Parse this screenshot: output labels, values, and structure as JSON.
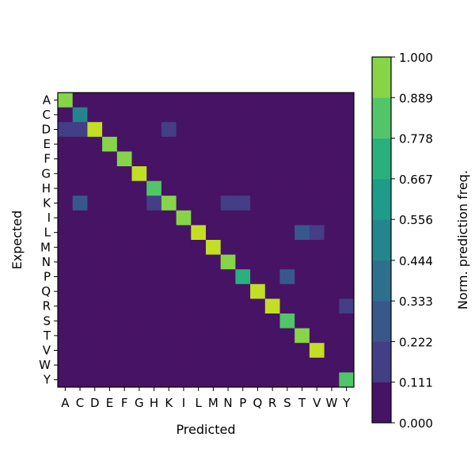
{
  "chart_data": {
    "type": "heatmap",
    "title": "",
    "xlabel": "Predicted",
    "ylabel": "Expected",
    "x_categories": [
      "A",
      "C",
      "D",
      "E",
      "F",
      "G",
      "H",
      "K",
      "I",
      "L",
      "M",
      "N",
      "P",
      "Q",
      "R",
      "S",
      "T",
      "V",
      "W",
      "Y"
    ],
    "y_categories": [
      "A",
      "C",
      "D",
      "E",
      "F",
      "G",
      "H",
      "K",
      "I",
      "L",
      "M",
      "N",
      "P",
      "Q",
      "R",
      "S",
      "T",
      "V",
      "W",
      "Y"
    ],
    "colorbar": {
      "label": "Norm. prediction freq.",
      "ticks": [
        "0.000",
        "0.111",
        "0.222",
        "0.333",
        "0.444",
        "0.556",
        "0.667",
        "0.778",
        "0.889",
        "1.000"
      ],
      "range": [
        0,
        1
      ],
      "levels": 9,
      "colors": [
        "#471365",
        "#433e85",
        "#38588c",
        "#2d708e",
        "#25858e",
        "#1e9b8a",
        "#2ab07f",
        "#52c569",
        "#86d549",
        "#c2df23"
      ]
    },
    "matrix": [
      [
        0.89,
        0.02,
        0.02,
        0.02,
        0.02,
        0.02,
        0.02,
        0.02,
        0.05,
        0.02,
        0.02,
        0.02,
        0.06,
        0.02,
        0.02,
        0.02,
        0.02,
        0.02,
        0.02,
        0.04
      ],
      [
        0.02,
        0.5,
        0.02,
        0.02,
        0.02,
        0.02,
        0.02,
        0.02,
        0.02,
        0.02,
        0.02,
        0.02,
        0.02,
        0.02,
        0.02,
        0.02,
        0.02,
        0.02,
        0.02,
        0.02
      ],
      [
        0.13,
        0.13,
        1.0,
        0.02,
        0.02,
        0.02,
        0.02,
        0.15,
        0.04,
        0.02,
        0.02,
        0.02,
        0.02,
        0.02,
        0.02,
        0.02,
        0.02,
        0.02,
        0.02,
        0.08
      ],
      [
        0.02,
        0.02,
        0.02,
        0.95,
        0.02,
        0.02,
        0.02,
        0.02,
        0.02,
        0.02,
        0.02,
        0.02,
        0.02,
        0.02,
        0.02,
        0.02,
        0.02,
        0.02,
        0.02,
        0.04
      ],
      [
        0.02,
        0.02,
        0.02,
        0.02,
        0.89,
        0.02,
        0.02,
        0.02,
        0.02,
        0.02,
        0.02,
        0.02,
        0.02,
        0.02,
        0.02,
        0.02,
        0.02,
        0.02,
        0.02,
        0.02
      ],
      [
        0.02,
        0.02,
        0.02,
        0.02,
        0.02,
        1.0,
        0.02,
        0.02,
        0.02,
        0.02,
        0.02,
        0.02,
        0.02,
        0.02,
        0.02,
        0.02,
        0.02,
        0.02,
        0.02,
        0.02
      ],
      [
        0.02,
        0.02,
        0.02,
        0.02,
        0.02,
        0.02,
        0.82,
        0.02,
        0.02,
        0.02,
        0.02,
        0.02,
        0.02,
        0.02,
        0.02,
        0.02,
        0.02,
        0.02,
        0.02,
        0.02
      ],
      [
        0.02,
        0.29,
        0.02,
        0.03,
        0.05,
        0.02,
        0.2,
        0.89,
        0.02,
        0.02,
        0.02,
        0.13,
        0.15,
        0.02,
        0.02,
        0.02,
        0.02,
        0.02,
        0.02,
        0.02
      ],
      [
        0.02,
        0.02,
        0.02,
        0.02,
        0.02,
        0.02,
        0.02,
        0.02,
        0.89,
        0.02,
        0.02,
        0.02,
        0.02,
        0.02,
        0.02,
        0.02,
        0.02,
        0.02,
        0.02,
        0.02
      ],
      [
        0.05,
        0.07,
        0.07,
        0.03,
        0.07,
        0.02,
        0.04,
        0.09,
        0.09,
        1.0,
        0.02,
        0.02,
        0.07,
        0.02,
        0.02,
        0.02,
        0.25,
        0.12,
        0.02,
        0.06
      ],
      [
        0.02,
        0.02,
        0.02,
        0.02,
        0.02,
        0.02,
        0.02,
        0.02,
        0.02,
        0.02,
        1.0,
        0.02,
        0.02,
        0.02,
        0.02,
        0.02,
        0.02,
        0.02,
        0.02,
        0.02
      ],
      [
        0.02,
        0.08,
        0.02,
        0.02,
        0.02,
        0.02,
        0.02,
        0.02,
        0.02,
        0.02,
        0.02,
        0.89,
        0.02,
        0.02,
        0.02,
        0.02,
        0.02,
        0.02,
        0.02,
        0.02
      ],
      [
        0.02,
        0.02,
        0.02,
        0.02,
        0.02,
        0.02,
        0.02,
        0.02,
        0.02,
        0.02,
        0.02,
        0.02,
        0.67,
        0.02,
        0.02,
        0.25,
        0.02,
        0.02,
        0.02,
        0.02
      ],
      [
        0.02,
        0.02,
        0.02,
        0.02,
        0.09,
        0.02,
        0.02,
        0.02,
        0.02,
        0.02,
        0.02,
        0.02,
        0.02,
        1.0,
        0.02,
        0.02,
        0.02,
        0.02,
        0.02,
        0.02
      ],
      [
        0.02,
        0.02,
        0.02,
        0.02,
        0.02,
        0.02,
        0.02,
        0.02,
        0.02,
        0.02,
        0.02,
        0.02,
        0.04,
        0.02,
        1.0,
        0.02,
        0.02,
        0.02,
        0.02,
        0.13
      ],
      [
        0.02,
        0.03,
        0.03,
        0.02,
        0.05,
        0.02,
        0.02,
        0.02,
        0.02,
        0.02,
        0.02,
        0.02,
        0.02,
        0.06,
        0.06,
        0.78,
        0.02,
        0.02,
        0.02,
        0.02
      ],
      [
        0.05,
        0.02,
        0.02,
        0.02,
        0.02,
        0.02,
        0.02,
        0.02,
        0.07,
        0.02,
        0.02,
        0.02,
        0.02,
        0.02,
        0.05,
        0.02,
        0.89,
        0.02,
        0.02,
        0.04
      ],
      [
        0.02,
        0.02,
        0.02,
        0.02,
        0.02,
        0.02,
        0.02,
        0.02,
        0.02,
        0.02,
        0.02,
        0.02,
        0.08,
        0.02,
        0.02,
        0.02,
        0.02,
        1.0,
        0.02,
        0.02
      ],
      [
        0.02,
        0.02,
        0.02,
        0.02,
        0.02,
        0.02,
        0.02,
        0.02,
        0.02,
        0.02,
        0.02,
        0.02,
        0.02,
        0.02,
        0.02,
        0.02,
        0.02,
        0.02,
        0.02,
        0.02
      ],
      [
        0.02,
        0.02,
        0.02,
        0.06,
        0.02,
        0.02,
        0.02,
        0.02,
        0.02,
        0.02,
        0.02,
        0.02,
        0.02,
        0.02,
        0.02,
        0.02,
        0.02,
        0.02,
        0.02,
        0.86
      ]
    ]
  }
}
